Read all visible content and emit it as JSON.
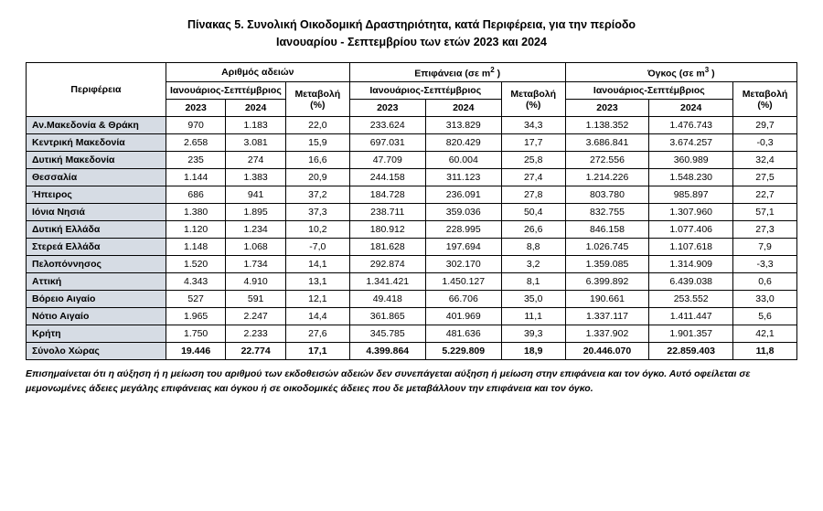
{
  "title_line1": "Πίνακας 5. Συνολική Οικοδομική Δραστηριότητα, κατά Περιφέρεια, για την περίοδο",
  "title_line2": "Ιανουαρίου - Σεπτεμβρίου των ετών 2023 και 2024",
  "columns": {
    "region": "Περιφέρεια",
    "group_permits": "Αριθμός αδειών",
    "group_surface_a": "Επιφάνεια (σε m",
    "group_surface_b": " )",
    "group_volume_a": "Όγκος (σε m",
    "group_volume_b": " )",
    "sup2": "2",
    "sup3": "3",
    "period": "Ιανουάριος-Σεπτέμβριος",
    "change": "Μεταβολή (%)",
    "y2023": "2023",
    "y2024": "2024"
  },
  "rows": [
    {
      "region": "Αν.Μακεδονία & Θράκη",
      "p23": "970",
      "p24": "1.183",
      "pc": "22,0",
      "s23": "233.624",
      "s24": "313.829",
      "sc": "34,3",
      "v23": "1.138.352",
      "v24": "1.476.743",
      "vc": "29,7"
    },
    {
      "region": "Κεντρική Μακεδονία",
      "p23": "2.658",
      "p24": "3.081",
      "pc": "15,9",
      "s23": "697.031",
      "s24": "820.429",
      "sc": "17,7",
      "v23": "3.686.841",
      "v24": "3.674.257",
      "vc": "-0,3"
    },
    {
      "region": "Δυτική Μακεδονία",
      "p23": "235",
      "p24": "274",
      "pc": "16,6",
      "s23": "47.709",
      "s24": "60.004",
      "sc": "25,8",
      "v23": "272.556",
      "v24": "360.989",
      "vc": "32,4"
    },
    {
      "region": "Θεσσαλία",
      "p23": "1.144",
      "p24": "1.383",
      "pc": "20,9",
      "s23": "244.158",
      "s24": "311.123",
      "sc": "27,4",
      "v23": "1.214.226",
      "v24": "1.548.230",
      "vc": "27,5"
    },
    {
      "region": "Ήπειρος",
      "p23": "686",
      "p24": "941",
      "pc": "37,2",
      "s23": "184.728",
      "s24": "236.091",
      "sc": "27,8",
      "v23": "803.780",
      "v24": "985.897",
      "vc": "22,7"
    },
    {
      "region": "Ιόνια Νησιά",
      "p23": "1.380",
      "p24": "1.895",
      "pc": "37,3",
      "s23": "238.711",
      "s24": "359.036",
      "sc": "50,4",
      "v23": "832.755",
      "v24": "1.307.960",
      "vc": "57,1"
    },
    {
      "region": "Δυτική Ελλάδα",
      "p23": "1.120",
      "p24": "1.234",
      "pc": "10,2",
      "s23": "180.912",
      "s24": "228.995",
      "sc": "26,6",
      "v23": "846.158",
      "v24": "1.077.406",
      "vc": "27,3"
    },
    {
      "region": "Στερεά Ελλάδα",
      "p23": "1.148",
      "p24": "1.068",
      "pc": "-7,0",
      "s23": "181.628",
      "s24": "197.694",
      "sc": "8,8",
      "v23": "1.026.745",
      "v24": "1.107.618",
      "vc": "7,9"
    },
    {
      "region": "Πελοπόννησος",
      "p23": "1.520",
      "p24": "1.734",
      "pc": "14,1",
      "s23": "292.874",
      "s24": "302.170",
      "sc": "3,2",
      "v23": "1.359.085",
      "v24": "1.314.909",
      "vc": "-3,3"
    },
    {
      "region": "Αττική",
      "p23": "4.343",
      "p24": "4.910",
      "pc": "13,1",
      "s23": "1.341.421",
      "s24": "1.450.127",
      "sc": "8,1",
      "v23": "6.399.892",
      "v24": "6.439.038",
      "vc": "0,6"
    },
    {
      "region": "Βόρειο Αιγαίο",
      "p23": "527",
      "p24": "591",
      "pc": "12,1",
      "s23": "49.418",
      "s24": "66.706",
      "sc": "35,0",
      "v23": "190.661",
      "v24": "253.552",
      "vc": "33,0"
    },
    {
      "region": "Νότιο Αιγαίο",
      "p23": "1.965",
      "p24": "2.247",
      "pc": "14,4",
      "s23": "361.865",
      "s24": "401.969",
      "sc": "11,1",
      "v23": "1.337.117",
      "v24": "1.411.447",
      "vc": "5,6"
    },
    {
      "region": "Κρήτη",
      "p23": "1.750",
      "p24": "2.233",
      "pc": "27,6",
      "s23": "345.785",
      "s24": "481.636",
      "sc": "39,3",
      "v23": "1.337.902",
      "v24": "1.901.357",
      "vc": "42,1"
    }
  ],
  "total": {
    "region": "Σύνολο Χώρας",
    "p23": "19.446",
    "p24": "22.774",
    "pc": "17,1",
    "s23": "4.399.864",
    "s24": "5.229.809",
    "sc": "18,9",
    "v23": "20.446.070",
    "v24": "22.859.403",
    "vc": "11,8"
  },
  "footnote": "Επισημαίνεται ότι η αύξηση ή η μείωση του αριθμού των εκδοθεισών αδειών δεν συνεπάγεται αύξηση ή μείωση στην επιφάνεια και τον όγκο. Αυτό οφείλεται σε μεμονωμένες άδειες μεγάλης επιφάνειας και όγκου ή σε οικοδομικές άδειες που δε μεταβάλλουν την επιφάνεια και τον όγκο.",
  "styling": {
    "header_bg": "#ffffff",
    "label_bg": "#d6dce4",
    "border_color": "#000000",
    "font_family": "Arial",
    "col_widths_pct": [
      17.5,
      7.5,
      7.5,
      8,
      9.5,
      9.5,
      8,
      10.5,
      10.5,
      8
    ]
  }
}
